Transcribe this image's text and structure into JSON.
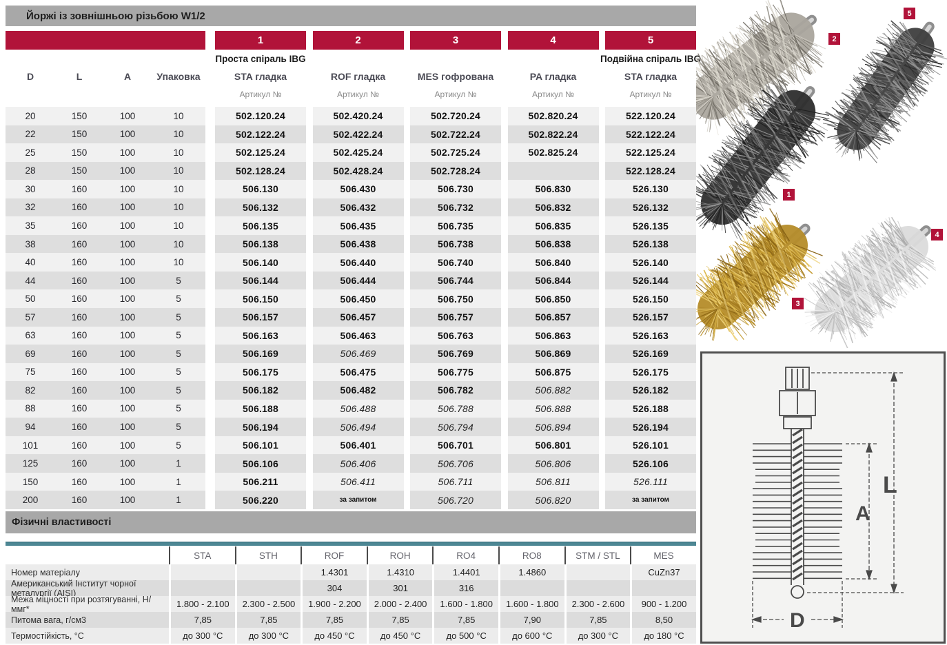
{
  "page": {
    "title": "Йоржі із зовнішньою різьбою W1/2",
    "section2_title": "Фізичні властивості"
  },
  "main_table": {
    "info_columns": [
      "D",
      "L",
      "A",
      "Упаковка"
    ],
    "article_columns": [
      {
        "num": "1",
        "group": "Проста спіраль IBG",
        "material": "STA гладка",
        "article_label": "Артикул №"
      },
      {
        "num": "2",
        "group": "",
        "material": "ROF гладка",
        "article_label": "Артикул №"
      },
      {
        "num": "3",
        "group": "",
        "material": "MES гофрована",
        "article_label": "Артикул №"
      },
      {
        "num": "4",
        "group": "",
        "material": "PA гладка",
        "article_label": "Артикул №"
      },
      {
        "num": "5",
        "group": "Подвійна спіраль IBG",
        "material": "STA гладка",
        "article_label": "Артикул №"
      }
    ],
    "rows": [
      {
        "d": "20",
        "l": "150",
        "a": "100",
        "pack": "10",
        "articles": [
          "502.120.24",
          "502.420.24",
          "502.720.24",
          "502.820.24",
          "522.120.24"
        ],
        "styles": [
          "b",
          "b",
          "b",
          "b",
          "b"
        ]
      },
      {
        "d": "22",
        "l": "150",
        "a": "100",
        "pack": "10",
        "articles": [
          "502.122.24",
          "502.422.24",
          "502.722.24",
          "502.822.24",
          "522.122.24"
        ],
        "styles": [
          "b",
          "b",
          "b",
          "b",
          "b"
        ]
      },
      {
        "d": "25",
        "l": "150",
        "a": "100",
        "pack": "10",
        "articles": [
          "502.125.24",
          "502.425.24",
          "502.725.24",
          "502.825.24",
          "522.125.24"
        ],
        "styles": [
          "b",
          "b",
          "b",
          "b",
          "b"
        ]
      },
      {
        "d": "28",
        "l": "150",
        "a": "100",
        "pack": "10",
        "articles": [
          "502.128.24",
          "502.428.24",
          "502.728.24",
          "",
          "522.128.24"
        ],
        "styles": [
          "b",
          "b",
          "b",
          "",
          "b"
        ]
      },
      {
        "d": "30",
        "l": "160",
        "a": "100",
        "pack": "10",
        "articles": [
          "506.130",
          "506.430",
          "506.730",
          "506.830",
          "526.130"
        ],
        "styles": [
          "b",
          "b",
          "b",
          "b",
          "b"
        ]
      },
      {
        "d": "32",
        "l": "160",
        "a": "100",
        "pack": "10",
        "articles": [
          "506.132",
          "506.432",
          "506.732",
          "506.832",
          "526.132"
        ],
        "styles": [
          "b",
          "b",
          "b",
          "b",
          "b"
        ]
      },
      {
        "d": "35",
        "l": "160",
        "a": "100",
        "pack": "10",
        "articles": [
          "506.135",
          "506.435",
          "506.735",
          "506.835",
          "526.135"
        ],
        "styles": [
          "b",
          "b",
          "b",
          "b",
          "b"
        ]
      },
      {
        "d": "38",
        "l": "160",
        "a": "100",
        "pack": "10",
        "articles": [
          "506.138",
          "506.438",
          "506.738",
          "506.838",
          "526.138"
        ],
        "styles": [
          "b",
          "b",
          "b",
          "b",
          "b"
        ]
      },
      {
        "d": "40",
        "l": "160",
        "a": "100",
        "pack": "10",
        "articles": [
          "506.140",
          "506.440",
          "506.740",
          "506.840",
          "526.140"
        ],
        "styles": [
          "b",
          "b",
          "b",
          "b",
          "b"
        ]
      },
      {
        "d": "44",
        "l": "160",
        "a": "100",
        "pack": "5",
        "articles": [
          "506.144",
          "506.444",
          "506.744",
          "506.844",
          "526.144"
        ],
        "styles": [
          "b",
          "b",
          "b",
          "b",
          "b"
        ]
      },
      {
        "d": "50",
        "l": "160",
        "a": "100",
        "pack": "5",
        "articles": [
          "506.150",
          "506.450",
          "506.750",
          "506.850",
          "526.150"
        ],
        "styles": [
          "b",
          "b",
          "b",
          "b",
          "b"
        ]
      },
      {
        "d": "57",
        "l": "160",
        "a": "100",
        "pack": "5",
        "articles": [
          "506.157",
          "506.457",
          "506.757",
          "506.857",
          "526.157"
        ],
        "styles": [
          "b",
          "b",
          "b",
          "b",
          "b"
        ]
      },
      {
        "d": "63",
        "l": "160",
        "a": "100",
        "pack": "5",
        "articles": [
          "506.163",
          "506.463",
          "506.763",
          "506.863",
          "526.163"
        ],
        "styles": [
          "b",
          "b",
          "b",
          "b",
          "b"
        ]
      },
      {
        "d": "69",
        "l": "160",
        "a": "100",
        "pack": "5",
        "articles": [
          "506.169",
          "506.469",
          "506.769",
          "506.869",
          "526.169"
        ],
        "styles": [
          "b",
          "i",
          "b",
          "b",
          "b"
        ]
      },
      {
        "d": "75",
        "l": "160",
        "a": "100",
        "pack": "5",
        "articles": [
          "506.175",
          "506.475",
          "506.775",
          "506.875",
          "526.175"
        ],
        "styles": [
          "b",
          "b",
          "b",
          "b",
          "b"
        ]
      },
      {
        "d": "82",
        "l": "160",
        "a": "100",
        "pack": "5",
        "articles": [
          "506.182",
          "506.482",
          "506.782",
          "506.882",
          "526.182"
        ],
        "styles": [
          "b",
          "b",
          "b",
          "i",
          "b"
        ]
      },
      {
        "d": "88",
        "l": "160",
        "a": "100",
        "pack": "5",
        "articles": [
          "506.188",
          "506.488",
          "506.788",
          "506.888",
          "526.188"
        ],
        "styles": [
          "b",
          "i",
          "i",
          "i",
          "b"
        ]
      },
      {
        "d": "94",
        "l": "160",
        "a": "100",
        "pack": "5",
        "articles": [
          "506.194",
          "506.494",
          "506.794",
          "506.894",
          "526.194"
        ],
        "styles": [
          "b",
          "i",
          "i",
          "i",
          "b"
        ]
      },
      {
        "d": "101",
        "l": "160",
        "a": "100",
        "pack": "5",
        "articles": [
          "506.101",
          "506.401",
          "506.701",
          "506.801",
          "526.101"
        ],
        "styles": [
          "b",
          "b",
          "b",
          "b",
          "b"
        ]
      },
      {
        "d": "125",
        "l": "160",
        "a": "100",
        "pack": "1",
        "articles": [
          "506.106",
          "506.406",
          "506.706",
          "506.806",
          "526.106"
        ],
        "styles": [
          "b",
          "i",
          "i",
          "i",
          "b"
        ]
      },
      {
        "d": "150",
        "l": "160",
        "a": "100",
        "pack": "1",
        "articles": [
          "506.211",
          "506.411",
          "506.711",
          "506.811",
          "526.111"
        ],
        "styles": [
          "b",
          "i",
          "i",
          "i",
          "i"
        ]
      },
      {
        "d": "200",
        "l": "160",
        "a": "100",
        "pack": "1",
        "articles": [
          "506.220",
          "за запитом",
          "506.720",
          "506.820",
          "за запитом"
        ],
        "styles": [
          "b",
          "r",
          "i",
          "i",
          "r"
        ]
      }
    ]
  },
  "physical_table": {
    "columns": [
      "STA",
      "STH",
      "ROF",
      "ROH",
      "RO4",
      "RO8",
      "STM / STL",
      "MES"
    ],
    "rows": [
      {
        "label": "Номер матеріалу",
        "values": [
          "",
          "",
          "1.4301",
          "1.4310",
          "1.4401",
          "1.4860",
          "",
          "CuZn37"
        ]
      },
      {
        "label": "Американський Інститут чорної металургії (AISI)",
        "values": [
          "",
          "",
          "304",
          "301",
          "316",
          "",
          "",
          ""
        ]
      },
      {
        "label": "Межа міцності при розтягуванні, Н/ммг*",
        "values": [
          "1.800 - 2.100",
          "2.300 - 2.500",
          "1.900 - 2.200",
          "2.000 - 2.400",
          "1.600 - 1.800",
          "1.600 - 1.800",
          "2.300 - 2.600",
          "900 - 1.200"
        ]
      },
      {
        "label": "Питома вага, г/см3",
        "values": [
          "7,85",
          "7,85",
          "7,85",
          "7,85",
          "7,85",
          "7,90",
          "7,85",
          "8,50"
        ]
      },
      {
        "label": "Термостійкість, °С",
        "values": [
          "до 300 °C",
          "до 300 °C",
          "до 450 °C",
          "до 450 °C",
          "до 500 °C",
          "до 600 °C",
          "до 300 °C",
          "до 180 °C"
        ]
      }
    ]
  },
  "diagram": {
    "length_label": "L",
    "brush_length_label": "A",
    "diameter_label": "D"
  },
  "photo_tags": [
    "1",
    "2",
    "3",
    "4",
    "5"
  ],
  "colors": {
    "accent_red": "#b11339",
    "bar_gray": "#a8a8a8",
    "row_light": "#f1f1f1",
    "row_dark": "#dedede",
    "phys_row_light": "#ececec",
    "phys_row_dark": "#dcdcdc",
    "teal_line": "#4d8794"
  }
}
